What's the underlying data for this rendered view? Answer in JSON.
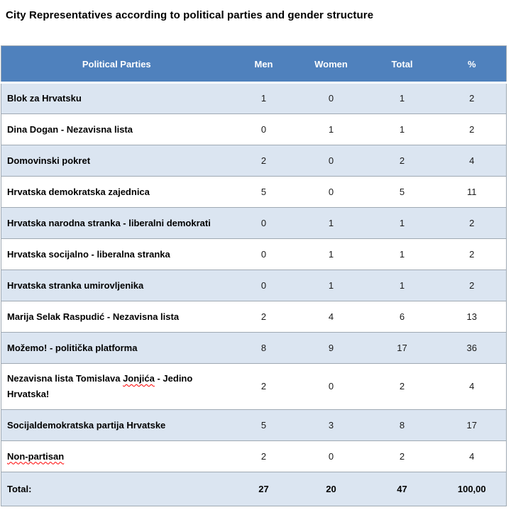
{
  "page": {
    "title": "City Representatives according to political parties and gender structure"
  },
  "table": {
    "headers": [
      "Political Parties",
      "Men",
      "Women",
      "Total",
      "%"
    ],
    "rows": [
      {
        "party": "Blok za Hrvatsku",
        "men": "1",
        "women": "0",
        "total": "1",
        "pct": "2"
      },
      {
        "party": "Dina Dogan - Nezavisna lista",
        "men": "0",
        "women": "1",
        "total": "1",
        "pct": "2"
      },
      {
        "party": "Domovinski pokret",
        "men": "2",
        "women": "0",
        "total": "2",
        "pct": "4"
      },
      {
        "party": "Hrvatska demokratska zajednica",
        "men": "5",
        "women": "0",
        "total": "5",
        "pct": "11"
      },
      {
        "party": "Hrvatska narodna stranka - liberalni demokrati",
        "men": "0",
        "women": "1",
        "total": "1",
        "pct": "2"
      },
      {
        "party": "Hrvatska socijalno - liberalna stranka",
        "men": "0",
        "women": "1",
        "total": "1",
        "pct": "2"
      },
      {
        "party": "Hrvatska stranka umirovljenika",
        "men": "0",
        "women": "1",
        "total": "1",
        "pct": "2"
      },
      {
        "party": "Marija Selak Raspudić - Nezavisna lista",
        "men": "2",
        "women": "4",
        "total": "6",
        "pct": "13"
      },
      {
        "party": "Možemo! - politička platforma",
        "men": "8",
        "women": "9",
        "total": "17",
        "pct": "36"
      },
      {
        "party_prefix": "Nezavisna lista Tomislava ",
        "party_misspelled": "Jonjića",
        "party_suffix": " - Jedino Hrvatska!",
        "men": "2",
        "women": "0",
        "total": "2",
        "pct": "4"
      },
      {
        "party": "Socijaldemokratska partija Hrvatske",
        "men": "5",
        "women": "3",
        "total": "8",
        "pct": "17"
      },
      {
        "party_misspelled": "Non-partisan",
        "men": "2",
        "women": "0",
        "total": "2",
        "pct": "4"
      }
    ],
    "total": {
      "label": "Total:",
      "men": "27",
      "women": "20",
      "total": "47",
      "pct": "100,00"
    }
  },
  "colors": {
    "header_bg": "#4f81bd",
    "header_text": "#ffffff",
    "shaded_row": "#dbe5f1",
    "border": "#9fa9b3",
    "spellcheck": "#ff0000"
  },
  "chart_data": {
    "type": "table",
    "title": "City Representatives according to political parties and gender structure",
    "columns": [
      "Political Parties",
      "Men",
      "Women",
      "Total",
      "%"
    ],
    "rows": [
      [
        "Blok za Hrvatsku",
        1,
        0,
        1,
        2
      ],
      [
        "Dina Dogan - Nezavisna lista",
        0,
        1,
        1,
        2
      ],
      [
        "Domovinski pokret",
        2,
        0,
        2,
        4
      ],
      [
        "Hrvatska demokratska zajednica",
        5,
        0,
        5,
        11
      ],
      [
        "Hrvatska narodna stranka - liberalni demokrati",
        0,
        1,
        1,
        2
      ],
      [
        "Hrvatska socijalno - liberalna stranka",
        0,
        1,
        1,
        2
      ],
      [
        "Hrvatska stranka umirovljenika",
        0,
        1,
        1,
        2
      ],
      [
        "Marija Selak Raspudić - Nezavisna lista",
        2,
        4,
        6,
        13
      ],
      [
        "Možemo! - politička platforma",
        8,
        9,
        17,
        36
      ],
      [
        "Nezavisna lista Tomislava Jonjića - Jedino Hrvatska!",
        2,
        0,
        2,
        4
      ],
      [
        "Socijaldemokratska partija Hrvatske",
        5,
        3,
        8,
        17
      ],
      [
        "Non-partisan",
        2,
        0,
        2,
        4
      ],
      [
        "Total:",
        27,
        20,
        47,
        "100,00"
      ]
    ]
  }
}
